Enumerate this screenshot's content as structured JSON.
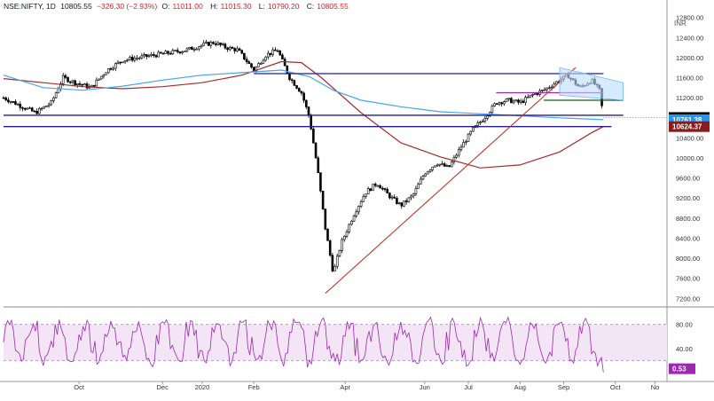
{
  "header": {
    "symbol": "NSE:NIFTY, 1D",
    "last": "10805.55",
    "change": "−326.30 (−2.93%)",
    "open_label": "O:",
    "open": "11011.00",
    "high_label": "H:",
    "high": "11015.30",
    "low_label": "L:",
    "low": "10790.20",
    "close_label": "C:",
    "close": "10805.55"
  },
  "currency": "INR",
  "colors": {
    "candle": "#000000",
    "ma_short": "#42a5f5",
    "ma_long": "#a52a2a",
    "trend": "#c0392b",
    "hline": "#2a1b8e",
    "purple_line": "#9c27b0",
    "green_line": "#1b5e20",
    "channel_fill": "#bbdefb",
    "rsi": "#9c27b0",
    "rsi_band": "#f3e5f5"
  },
  "price_badges": [
    {
      "text": "10805.55",
      "value": 10805.55,
      "bg": "#000000"
    },
    {
      "text": "10761.38",
      "value": 10761.38,
      "bg": "#2196f3"
    },
    {
      "text": "10624.37",
      "value": 10624.37,
      "bg": "#8b1a1a"
    }
  ],
  "rsi_badge": {
    "text": "0.53",
    "bg": "#9c27b0"
  },
  "chart_data": [
    {
      "type": "candlestick",
      "y_ticks": [
        "7200.00",
        "7600.00",
        "8000.00",
        "8400.00",
        "8800.00",
        "9200.00",
        "9600.00",
        "10000.00",
        "10400.00",
        "10800.00",
        "11200.00",
        "11600.00",
        "12000.00",
        "12400.00",
        "12800.00"
      ],
      "y_tick_values": [
        7200,
        7600,
        8000,
        8400,
        8800,
        9200,
        9600,
        10000,
        10400,
        10800,
        11200,
        11600,
        12000,
        12400,
        12800
      ],
      "ylim": [
        7100,
        12900
      ],
      "x_ticks": [
        "Oct",
        "Dec",
        "2020",
        "Feb",
        "Apr",
        "Jun",
        "Jul",
        "Aug",
        "Sep",
        "Oct",
        "No"
      ],
      "x_tick_pos": [
        1.9,
        4.0,
        5.0,
        6.3,
        8.6,
        10.6,
        11.7,
        13.0,
        14.1,
        15.4,
        16.4
      ],
      "x_range": [
        0.0,
        16.7
      ],
      "close_path": [
        [
          0,
          11200
        ],
        [
          0.4,
          11050
        ],
        [
          0.8,
          10900
        ],
        [
          1.2,
          11100
        ],
        [
          1.5,
          11600
        ],
        [
          1.8,
          11500
        ],
        [
          2.2,
          11400
        ],
        [
          2.6,
          11750
        ],
        [
          3.0,
          11950
        ],
        [
          3.4,
          12000
        ],
        [
          3.8,
          12050
        ],
        [
          4.2,
          12100
        ],
        [
          4.6,
          12150
        ],
        [
          5.0,
          12250
        ],
        [
          5.3,
          12300
        ],
        [
          5.6,
          12200
        ],
        [
          5.9,
          12150
        ],
        [
          6.3,
          11750
        ],
        [
          6.6,
          12050
        ],
        [
          6.9,
          12150
        ],
        [
          7.2,
          11600
        ],
        [
          7.5,
          11300
        ],
        [
          7.7,
          10800
        ],
        [
          7.9,
          9800
        ],
        [
          8.1,
          8600
        ],
        [
          8.3,
          7700
        ],
        [
          8.5,
          8300
        ],
        [
          8.8,
          8850
        ],
        [
          9.1,
          9300
        ],
        [
          9.4,
          9500
        ],
        [
          9.7,
          9250
        ],
        [
          10.0,
          9050
        ],
        [
          10.3,
          9250
        ],
        [
          10.6,
          9700
        ],
        [
          10.9,
          9900
        ],
        [
          11.2,
          9800
        ],
        [
          11.5,
          10200
        ],
        [
          11.8,
          10550
        ],
        [
          12.1,
          10800
        ],
        [
          12.4,
          11100
        ],
        [
          12.7,
          11150
        ],
        [
          13.0,
          11100
        ],
        [
          13.3,
          11250
        ],
        [
          13.6,
          11350
        ],
        [
          13.9,
          11500
        ],
        [
          14.2,
          11650
        ],
        [
          14.5,
          11400
        ],
        [
          14.8,
          11550
        ],
        [
          15.0,
          11350
        ],
        [
          15.1,
          10805.55
        ]
      ],
      "sma_short": [
        [
          0,
          11650
        ],
        [
          1,
          11400
        ],
        [
          2,
          11350
        ],
        [
          3,
          11430
        ],
        [
          4,
          11550
        ],
        [
          5,
          11650
        ],
        [
          6,
          11700
        ],
        [
          7,
          11750
        ],
        [
          7.7,
          11620
        ],
        [
          8.3,
          11350
        ],
        [
          9,
          11150
        ],
        [
          10,
          11020
        ],
        [
          11,
          10920
        ],
        [
          12,
          10880
        ],
        [
          13,
          10840
        ],
        [
          14,
          10800
        ],
        [
          15.1,
          10761.38
        ]
      ],
      "sma_long": [
        [
          0,
          11580
        ],
        [
          1,
          11500
        ],
        [
          2,
          11420
        ],
        [
          3,
          11380
        ],
        [
          4,
          11420
        ],
        [
          5,
          11500
        ],
        [
          6,
          11650
        ],
        [
          7,
          11920
        ],
        [
          7.5,
          11900
        ],
        [
          8,
          11600
        ],
        [
          9,
          10900
        ],
        [
          10,
          10300
        ],
        [
          11,
          10020
        ],
        [
          12,
          9800
        ],
        [
          13,
          9860
        ],
        [
          14,
          10120
        ],
        [
          14.8,
          10500
        ],
        [
          15.1,
          10624.37
        ]
      ],
      "rsi": {
        "ticks": [
          "40.00",
          "80.00"
        ],
        "tick_values": [
          40,
          80
        ],
        "band": [
          20,
          80
        ],
        "last": 0.53
      }
    }
  ]
}
